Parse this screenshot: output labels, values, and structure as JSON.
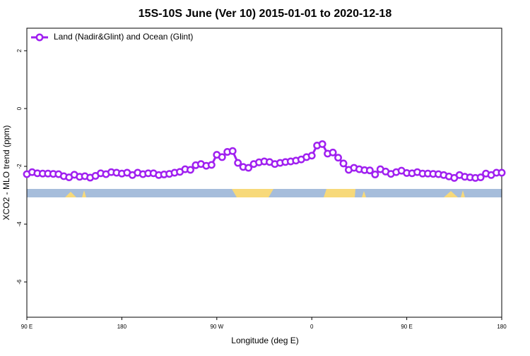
{
  "chart_data": {
    "type": "line",
    "title": "15S-10S June (Ver 10)   2015-01-01 to 2020-12-18",
    "xlabel": "Longitude (deg E)",
    "ylabel": "XCO2 - MLO trend (ppm)",
    "xlim": [
      90,
      540
    ],
    "ylim": [
      -7.22,
      2.78
    ],
    "xticks": [
      {
        "value": 90,
        "label": "90 E"
      },
      {
        "value": 180,
        "label": "180"
      },
      {
        "value": 270,
        "label": "90 W"
      },
      {
        "value": 360,
        "label": "0"
      },
      {
        "value": 450,
        "label": "90 E"
      },
      {
        "value": 540,
        "label": "180"
      }
    ],
    "yticks": [
      2,
      0,
      -2,
      -4,
      -6
    ],
    "legend": "top-left",
    "x": [
      90,
      95,
      100,
      105,
      110,
      115,
      120,
      125,
      130,
      135,
      140,
      145,
      150,
      155,
      160,
      165,
      170,
      175,
      180,
      185,
      190,
      195,
      200,
      205,
      210,
      215,
      220,
      225,
      230,
      235,
      240,
      245,
      250,
      255,
      260,
      265,
      270,
      275,
      280,
      285,
      290,
      295,
      300,
      305,
      310,
      315,
      320,
      325,
      330,
      335,
      340,
      345,
      350,
      355,
      360,
      365,
      370,
      375,
      380,
      385,
      390,
      395,
      400,
      405,
      410,
      415,
      420,
      425,
      430,
      435,
      440,
      445,
      450,
      455,
      460,
      465,
      470,
      475,
      480,
      485,
      490,
      495,
      500,
      505,
      510,
      515,
      520,
      525,
      530,
      535,
      540
    ],
    "series": [
      {
        "name": "Land (Nadir&Glint) and Ocean (Glint)",
        "color": "#a020f0",
        "values": [
          -2.27,
          -2.2,
          -2.24,
          -2.25,
          -2.25,
          -2.26,
          -2.27,
          -2.34,
          -2.38,
          -2.29,
          -2.36,
          -2.34,
          -2.39,
          -2.33,
          -2.24,
          -2.27,
          -2.2,
          -2.22,
          -2.25,
          -2.22,
          -2.3,
          -2.22,
          -2.27,
          -2.24,
          -2.24,
          -2.3,
          -2.28,
          -2.26,
          -2.22,
          -2.19,
          -2.1,
          -2.12,
          -1.96,
          -1.92,
          -1.98,
          -1.95,
          -1.6,
          -1.68,
          -1.5,
          -1.47,
          -1.88,
          -2.02,
          -2.05,
          -1.92,
          -1.86,
          -1.83,
          -1.85,
          -1.92,
          -1.88,
          -1.85,
          -1.83,
          -1.8,
          -1.76,
          -1.68,
          -1.63,
          -1.28,
          -1.23,
          -1.56,
          -1.52,
          -1.7,
          -1.9,
          -2.12,
          -2.05,
          -2.1,
          -2.13,
          -2.14,
          -2.28,
          -2.1,
          -2.18,
          -2.26,
          -2.2,
          -2.15,
          -2.23,
          -2.24,
          -2.2,
          -2.25,
          -2.25,
          -2.26,
          -2.27,
          -2.3,
          -2.35,
          -2.4,
          -2.3,
          -2.36,
          -2.38,
          -2.4,
          -2.38,
          -2.25,
          -2.3,
          -2.22,
          -2.22
        ]
      }
    ]
  }
}
